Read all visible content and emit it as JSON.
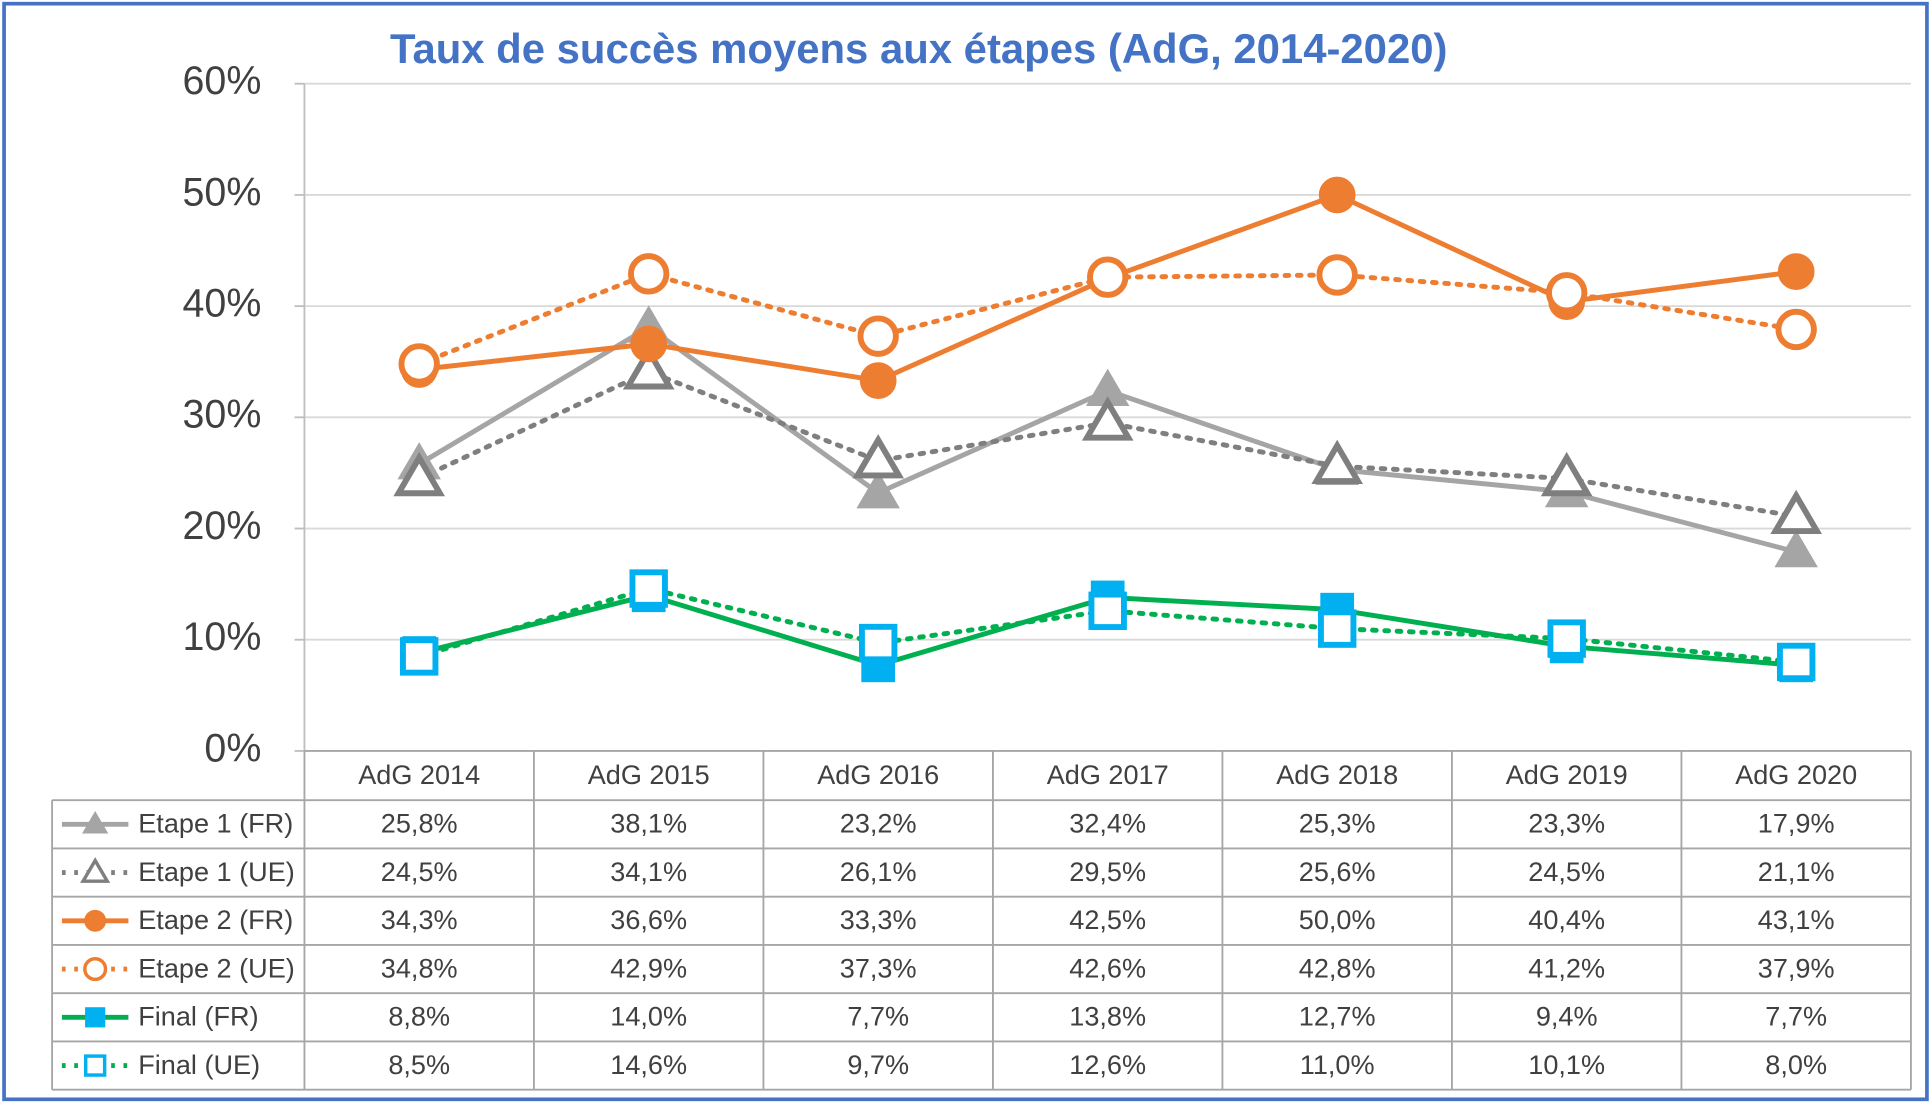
{
  "chart_data": {
    "type": "line",
    "title": "Taux de succès moyens aux étapes (AdG, 2014-2020)",
    "categories": [
      "AdG 2014",
      "AdG 2015",
      "AdG 2016",
      "AdG 2017",
      "AdG 2018",
      "AdG 2019",
      "AdG 2020"
    ],
    "ylim": [
      0,
      60
    ],
    "yticks": [
      {
        "value": 0,
        "label": "0%"
      },
      {
        "value": 10,
        "label": "10%"
      },
      {
        "value": 20,
        "label": "20%"
      },
      {
        "value": 30,
        "label": "30%"
      },
      {
        "value": 40,
        "label": "40%"
      },
      {
        "value": 50,
        "label": "50%"
      },
      {
        "value": 60,
        "label": "60%"
      }
    ],
    "grid": true,
    "title_color": "#4472c4",
    "series": [
      {
        "name": "Etape 1 (FR)",
        "color": "#a5a5a5",
        "line": "solid",
        "marker": "triangle",
        "marker_color": "#a5a5a5",
        "filled": true,
        "values": [
          25.8,
          38.1,
          23.2,
          32.4,
          25.3,
          23.3,
          17.9
        ],
        "value_labels": [
          "25,8%",
          "38,1%",
          "23,2%",
          "32,4%",
          "25,3%",
          "23,3%",
          "17,9%"
        ]
      },
      {
        "name": "Etape 1 (UE)",
        "color": "#7f7f7f",
        "line": "dotted",
        "marker": "triangle",
        "marker_color": "#7f7f7f",
        "filled": false,
        "values": [
          24.5,
          34.1,
          26.1,
          29.5,
          25.6,
          24.5,
          21.1
        ],
        "value_labels": [
          "24,5%",
          "34,1%",
          "26,1%",
          "29,5%",
          "25,6%",
          "24,5%",
          "21,1%"
        ]
      },
      {
        "name": "Etape 2 (FR)",
        "color": "#ed7d31",
        "line": "solid",
        "marker": "circle",
        "marker_color": "#ed7d31",
        "filled": true,
        "values": [
          34.3,
          36.6,
          33.3,
          42.5,
          50.0,
          40.4,
          43.1
        ],
        "value_labels": [
          "34,3%",
          "36,6%",
          "33,3%",
          "42,5%",
          "50,0%",
          "40,4%",
          "43,1%"
        ]
      },
      {
        "name": "Etape 2 (UE)",
        "color": "#ed7d31",
        "line": "dotted",
        "marker": "circle",
        "marker_color": "#ed7d31",
        "filled": false,
        "values": [
          34.8,
          42.9,
          37.3,
          42.6,
          42.8,
          41.2,
          37.9
        ],
        "value_labels": [
          "34,8%",
          "42,9%",
          "37,3%",
          "42,6%",
          "42,8%",
          "41,2%",
          "37,9%"
        ]
      },
      {
        "name": "Final (FR)",
        "color": "#00b050",
        "line": "solid",
        "marker": "square",
        "marker_color": "#00b0f0",
        "filled": true,
        "values": [
          8.8,
          14.0,
          7.7,
          13.8,
          12.7,
          9.4,
          7.7
        ],
        "value_labels": [
          "8,8%",
          "14,0%",
          "7,7%",
          "13,8%",
          "12,7%",
          "9,4%",
          "7,7%"
        ]
      },
      {
        "name": "Final (UE)",
        "color": "#00b050",
        "line": "dotted",
        "marker": "square",
        "marker_color": "#00b0f0",
        "filled": false,
        "values": [
          8.5,
          14.6,
          9.7,
          12.6,
          11.0,
          10.1,
          8.0
        ],
        "value_labels": [
          "8,5%",
          "14,6%",
          "9,7%",
          "12,6%",
          "11,0%",
          "10,1%",
          "8,0%"
        ]
      }
    ]
  }
}
